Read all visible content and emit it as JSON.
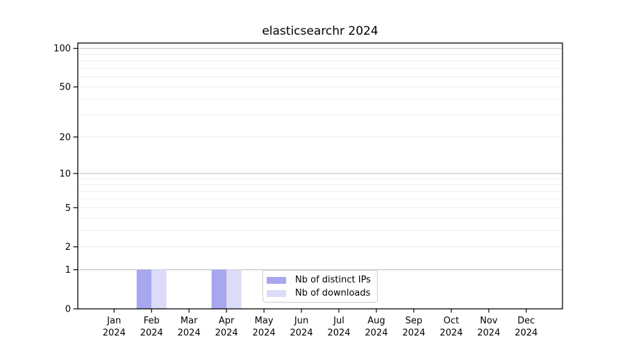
{
  "chart_data": {
    "type": "bar",
    "title": "elasticsearchr 2024",
    "x": [
      "Jan 2024",
      "Feb 2024",
      "Mar 2024",
      "Apr 2024",
      "May 2024",
      "Jun 2024",
      "Jul 2024",
      "Aug 2024",
      "Sep 2024",
      "Oct 2024",
      "Nov 2024",
      "Dec 2024"
    ],
    "series": [
      {
        "name": "Nb of distinct IPs",
        "color": "#a7a7f0",
        "values": [
          0,
          1,
          0,
          1,
          0,
          0,
          0,
          0,
          0,
          0,
          0,
          0
        ]
      },
      {
        "name": "Nb of downloads",
        "color": "#dcdcf8",
        "values": [
          0,
          1,
          0,
          1,
          0,
          0,
          0,
          0,
          0,
          0,
          0,
          0
        ]
      }
    ],
    "yscale": "log1p",
    "ylim": [
      0,
      110
    ],
    "yticks": [
      0,
      1,
      2,
      5,
      10,
      20,
      50,
      100
    ],
    "yticks_minor": [
      3,
      4,
      6,
      7,
      8,
      9,
      30,
      40,
      60,
      70,
      80,
      90
    ],
    "grid": "horizontal",
    "legend_position": "lower center"
  },
  "colors": {
    "background": "#ffffff",
    "axis": "#000000",
    "text": "#000000",
    "grid_decade": "#c8c8c8",
    "grid_minor": "#ececec",
    "legend_border": "#cccccc",
    "legend_background": "#ffffff"
  }
}
